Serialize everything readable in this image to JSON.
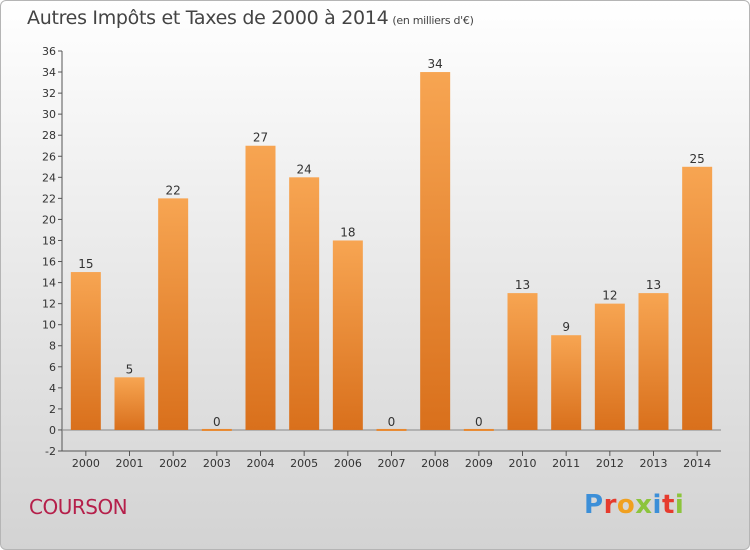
{
  "header": {
    "title": "Autres Impôts et Taxes de 2000 à 2014",
    "unit": "(en milliers d'€)"
  },
  "footer": {
    "commune": "COURSON",
    "logo_text": "Proxiti",
    "logo_colors": [
      "#3c8fd8",
      "#e63b2e",
      "#f0a020",
      "#8cc43c",
      "#3c8fd8",
      "#e63b2e",
      "#8cc43c"
    ]
  },
  "chart_data": {
    "type": "bar",
    "title": "Autres Impôts et Taxes de 2000 à 2014",
    "subtitle": "(en milliers d'€)",
    "categories": [
      "2000",
      "2001",
      "2002",
      "2003",
      "2004",
      "2005",
      "2006",
      "2007",
      "2008",
      "2009",
      "2010",
      "2011",
      "2012",
      "2013",
      "2014"
    ],
    "values": [
      15,
      5,
      22,
      0,
      27,
      24,
      18,
      0,
      34,
      0,
      13,
      9,
      12,
      13,
      25
    ],
    "ylim": [
      -2,
      36
    ],
    "yticks": [
      -2,
      0,
      2,
      4,
      6,
      8,
      10,
      12,
      14,
      16,
      18,
      20,
      22,
      24,
      26,
      28,
      30,
      32,
      34,
      36
    ],
    "grid": false,
    "bar_color": "#f08a2c"
  }
}
